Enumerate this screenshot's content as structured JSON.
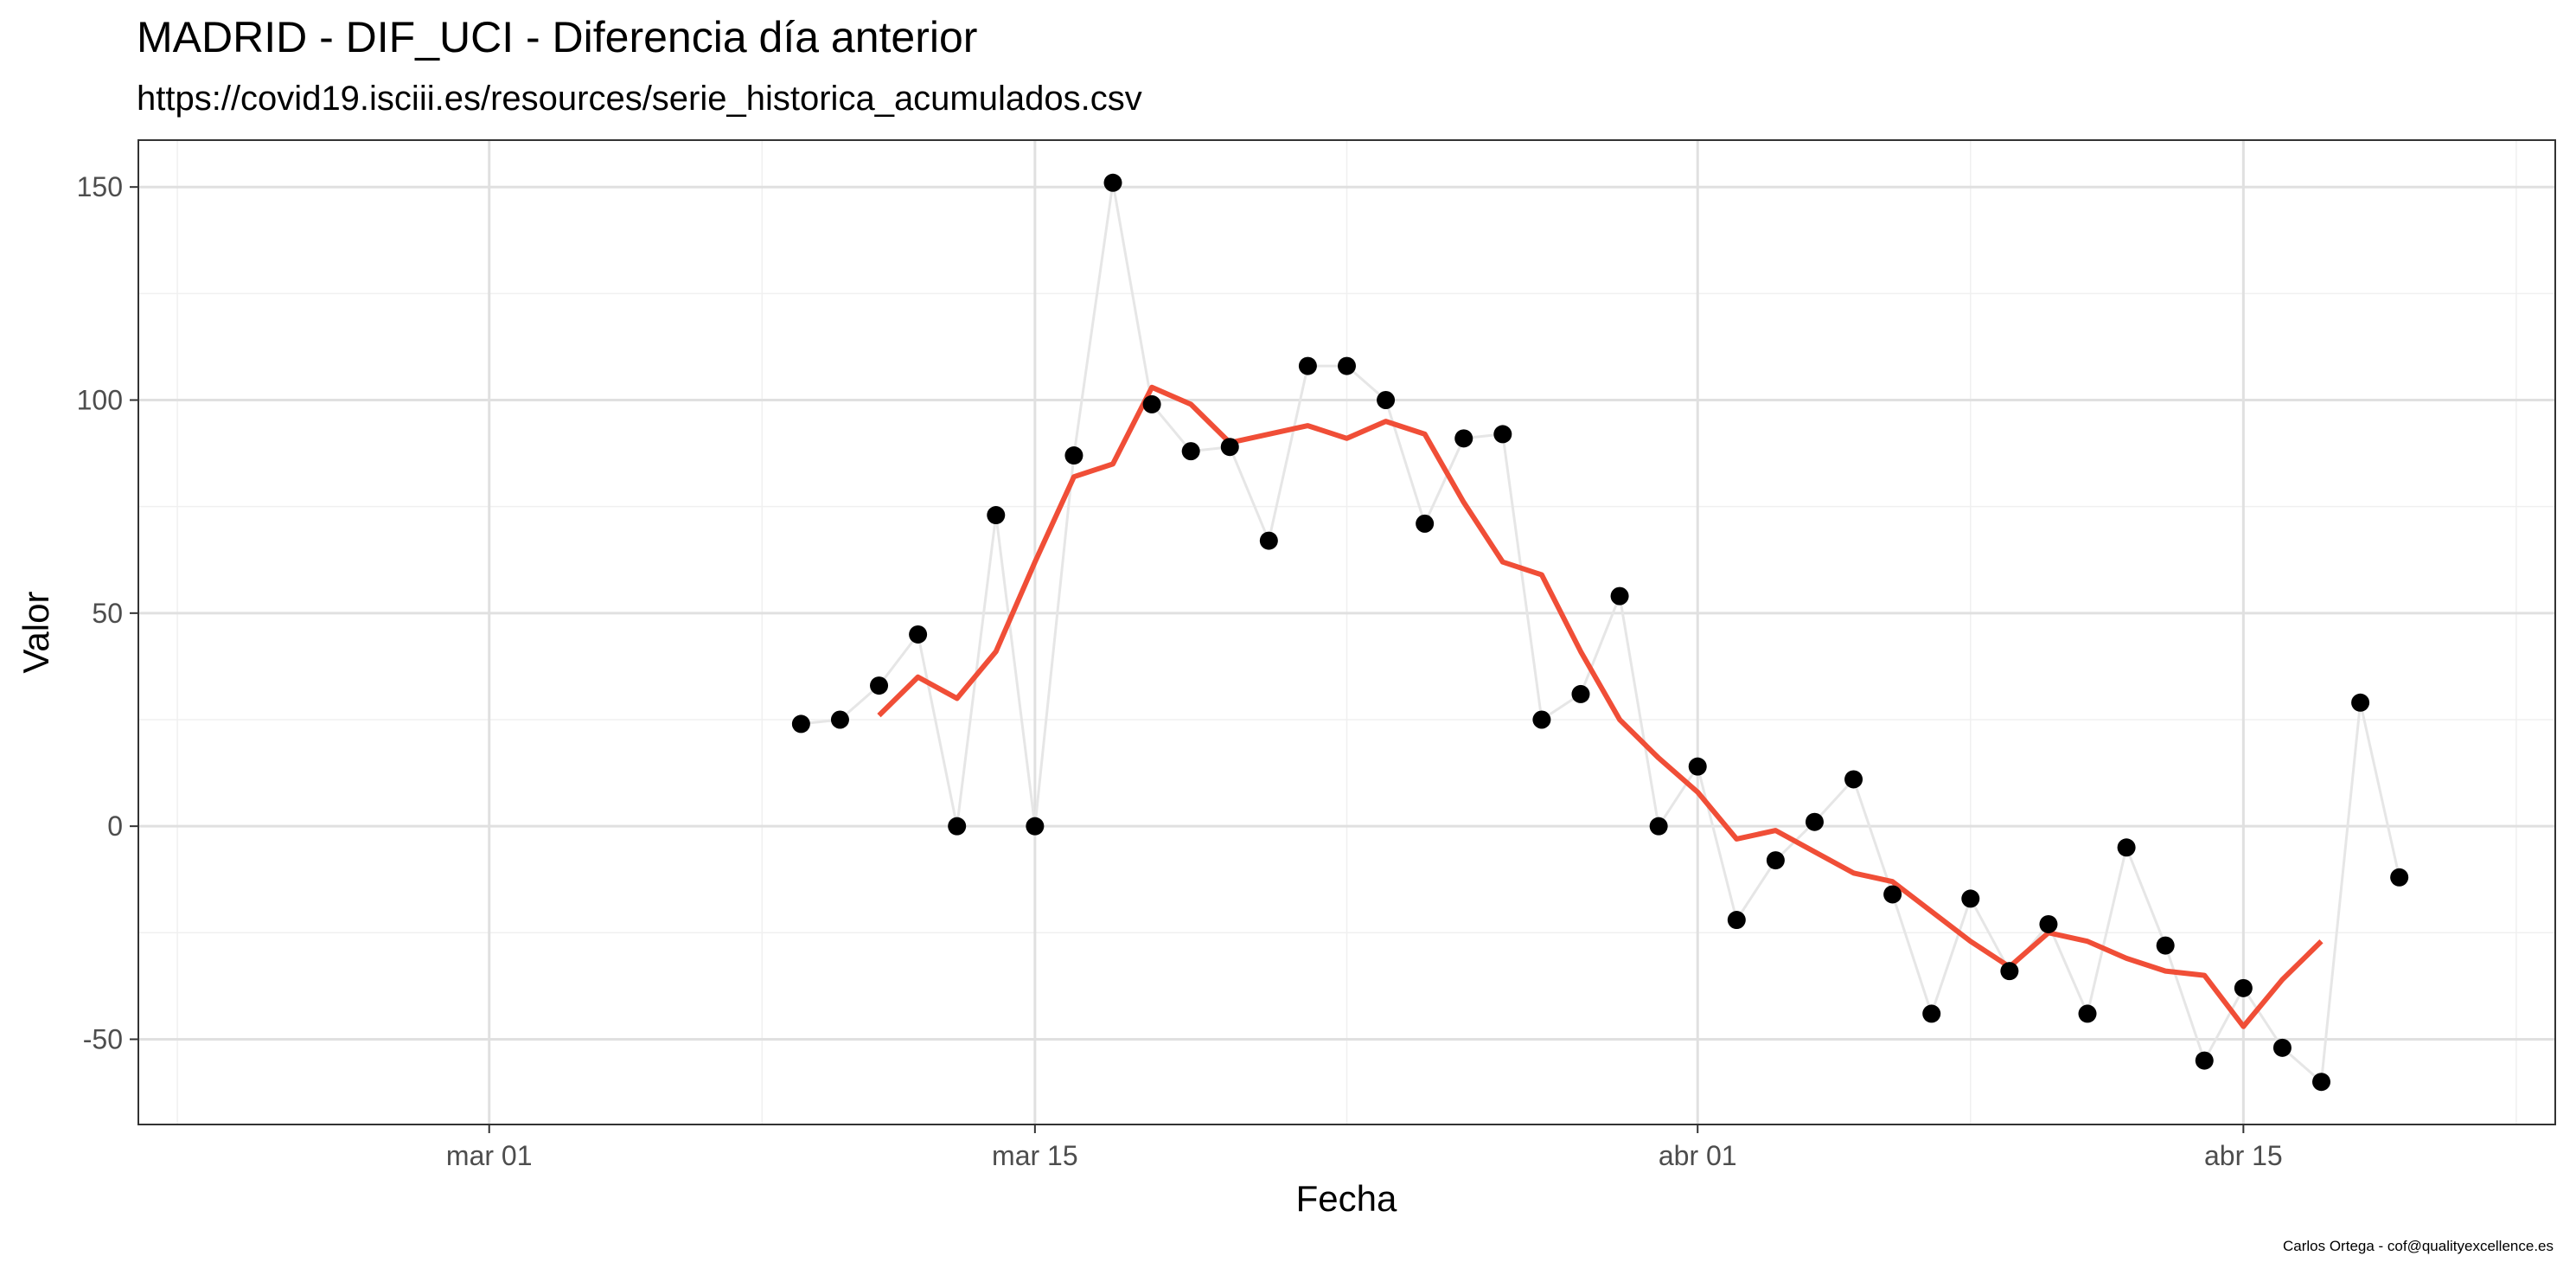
{
  "chart_data": {
    "type": "line",
    "title": "MADRID - DIF_UCI - Diferencia día anterior",
    "subtitle": "https://covid19.isciii.es/resources/serie_historica_acumulados.csv",
    "xlabel": "Fecha",
    "ylabel": "Valor",
    "caption": "Carlos Ortega - cof@qualityexcellence.es",
    "xlim": [
      "2020-02-21",
      "2020-04-23"
    ],
    "ylim": [
      -70,
      161
    ],
    "x_ticks": [
      {
        "date": "2020-03-01",
        "label": "mar 01"
      },
      {
        "date": "2020-03-15",
        "label": "mar 15"
      },
      {
        "date": "2020-04-01",
        "label": "abr 01"
      },
      {
        "date": "2020-04-15",
        "label": "abr 15"
      }
    ],
    "x_minor_ticks": [
      "2020-02-22",
      "2020-03-08",
      "2020-03-23",
      "2020-04-08",
      "2020-04-22"
    ],
    "y_ticks": [
      -50,
      0,
      50,
      100,
      150
    ],
    "y_minor_ticks": [
      -25,
      25,
      75,
      125
    ],
    "grid": true,
    "colors": {
      "points": "#000000",
      "raw_line": "#e6e6e6",
      "smooth_line": "#f04e37",
      "grid_major": "#e0e0e0",
      "grid_minor": "#f0f0f0",
      "panel_border": "#333333"
    },
    "series": [
      {
        "x": [
          "2020-03-09",
          "2020-03-10",
          "2020-03-11",
          "2020-03-12",
          "2020-03-13",
          "2020-03-14",
          "2020-03-15",
          "2020-03-16",
          "2020-03-17",
          "2020-03-18",
          "2020-03-19",
          "2020-03-20",
          "2020-03-21",
          "2020-03-22",
          "2020-03-23",
          "2020-03-24",
          "2020-03-25",
          "2020-03-26",
          "2020-03-27",
          "2020-03-28",
          "2020-03-29",
          "2020-03-30",
          "2020-03-31",
          "2020-04-01",
          "2020-04-02",
          "2020-04-03",
          "2020-04-04",
          "2020-04-05",
          "2020-04-06",
          "2020-04-07",
          "2020-04-08",
          "2020-04-09",
          "2020-04-10",
          "2020-04-11",
          "2020-04-12",
          "2020-04-13",
          "2020-04-14",
          "2020-04-15",
          "2020-04-16",
          "2020-04-17",
          "2020-04-18",
          "2020-04-19"
        ],
        "values": [
          24,
          25,
          33,
          45,
          0,
          73,
          0,
          87,
          151,
          99,
          88,
          89,
          67,
          108,
          108,
          100,
          71,
          91,
          92,
          25,
          31,
          54,
          0,
          14,
          -22,
          -8,
          1,
          11,
          -16,
          -44,
          -17,
          -34,
          -23,
          -44,
          -5,
          -28,
          -55,
          -38,
          -52,
          -60,
          29,
          -12
        ]
      },
      {
        "x": [
          "2020-03-11",
          "2020-03-12",
          "2020-03-13",
          "2020-03-14",
          "2020-03-15",
          "2020-03-16",
          "2020-03-17",
          "2020-03-18",
          "2020-03-19",
          "2020-03-20",
          "2020-03-21",
          "2020-03-22",
          "2020-03-23",
          "2020-03-24",
          "2020-03-25",
          "2020-03-26",
          "2020-03-27",
          "2020-03-28",
          "2020-03-29",
          "2020-03-30",
          "2020-03-31",
          "2020-04-01",
          "2020-04-02",
          "2020-04-03",
          "2020-04-04",
          "2020-04-05",
          "2020-04-06",
          "2020-04-07",
          "2020-04-08",
          "2020-04-09",
          "2020-04-10",
          "2020-04-11",
          "2020-04-12",
          "2020-04-13",
          "2020-04-14",
          "2020-04-15",
          "2020-04-16",
          "2020-04-17"
        ],
        "values": [
          26,
          35,
          30,
          41,
          62,
          82,
          85,
          103,
          99,
          90,
          92,
          94,
          91,
          95,
          92,
          76,
          62,
          59,
          41,
          25,
          16,
          8,
          -3,
          -1,
          -6,
          -11,
          -13,
          -20,
          -27,
          -33,
          -25,
          -27,
          -31,
          -34,
          -35,
          -47,
          -36,
          -27
        ]
      }
    ]
  }
}
